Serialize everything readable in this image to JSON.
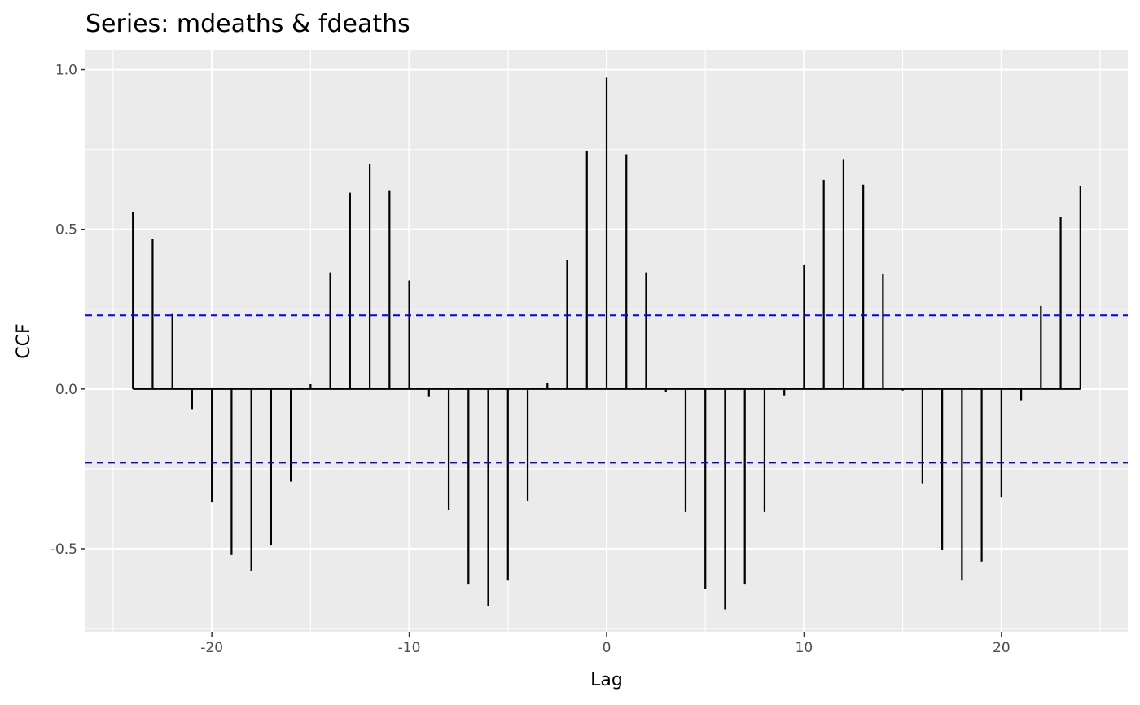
{
  "chart_data": {
    "type": "bar",
    "title": "Series: mdeaths & fdeaths",
    "xlabel": "Lag",
    "ylabel": "CCF",
    "xlim": [
      -26.4,
      26.4
    ],
    "ylim": [
      -0.76,
      1.06
    ],
    "x_ticks": [
      -20,
      -10,
      0,
      10,
      20
    ],
    "x_tick_labels": [
      "-20",
      "-10",
      "0",
      "10",
      "20"
    ],
    "y_ticks": [
      -0.5,
      0.0,
      0.5,
      1.0
    ],
    "y_tick_labels": [
      "-0.5",
      "0.0",
      "0.5",
      "1.0"
    ],
    "grid": true,
    "x": [
      -24,
      -23,
      -22,
      -21,
      -20,
      -19,
      -18,
      -17,
      -16,
      -15,
      -14,
      -13,
      -12,
      -11,
      -10,
      -9,
      -8,
      -7,
      -6,
      -5,
      -4,
      -3,
      -2,
      -1,
      0,
      1,
      2,
      3,
      4,
      5,
      6,
      7,
      8,
      9,
      10,
      11,
      12,
      13,
      14,
      15,
      16,
      17,
      18,
      19,
      20,
      21,
      22,
      23,
      24
    ],
    "values": [
      0.555,
      0.47,
      0.235,
      -0.065,
      -0.355,
      -0.52,
      -0.57,
      -0.49,
      -0.29,
      0.015,
      0.365,
      0.615,
      0.705,
      0.62,
      0.34,
      -0.025,
      -0.38,
      -0.61,
      -0.68,
      -0.6,
      -0.35,
      0.02,
      0.405,
      0.745,
      0.975,
      0.735,
      0.365,
      -0.01,
      -0.385,
      -0.625,
      -0.69,
      -0.61,
      -0.385,
      -0.02,
      0.39,
      0.655,
      0.72,
      0.64,
      0.36,
      -0.005,
      -0.295,
      -0.505,
      -0.6,
      -0.54,
      -0.34,
      -0.035,
      0.26,
      0.54,
      0.635
    ],
    "confidence_bounds": [
      0.2309,
      -0.2309
    ],
    "colors": {
      "panel": "#ebebeb",
      "grid": "#ffffff",
      "bars": "#000000",
      "bounds": "#0000ff"
    }
  }
}
